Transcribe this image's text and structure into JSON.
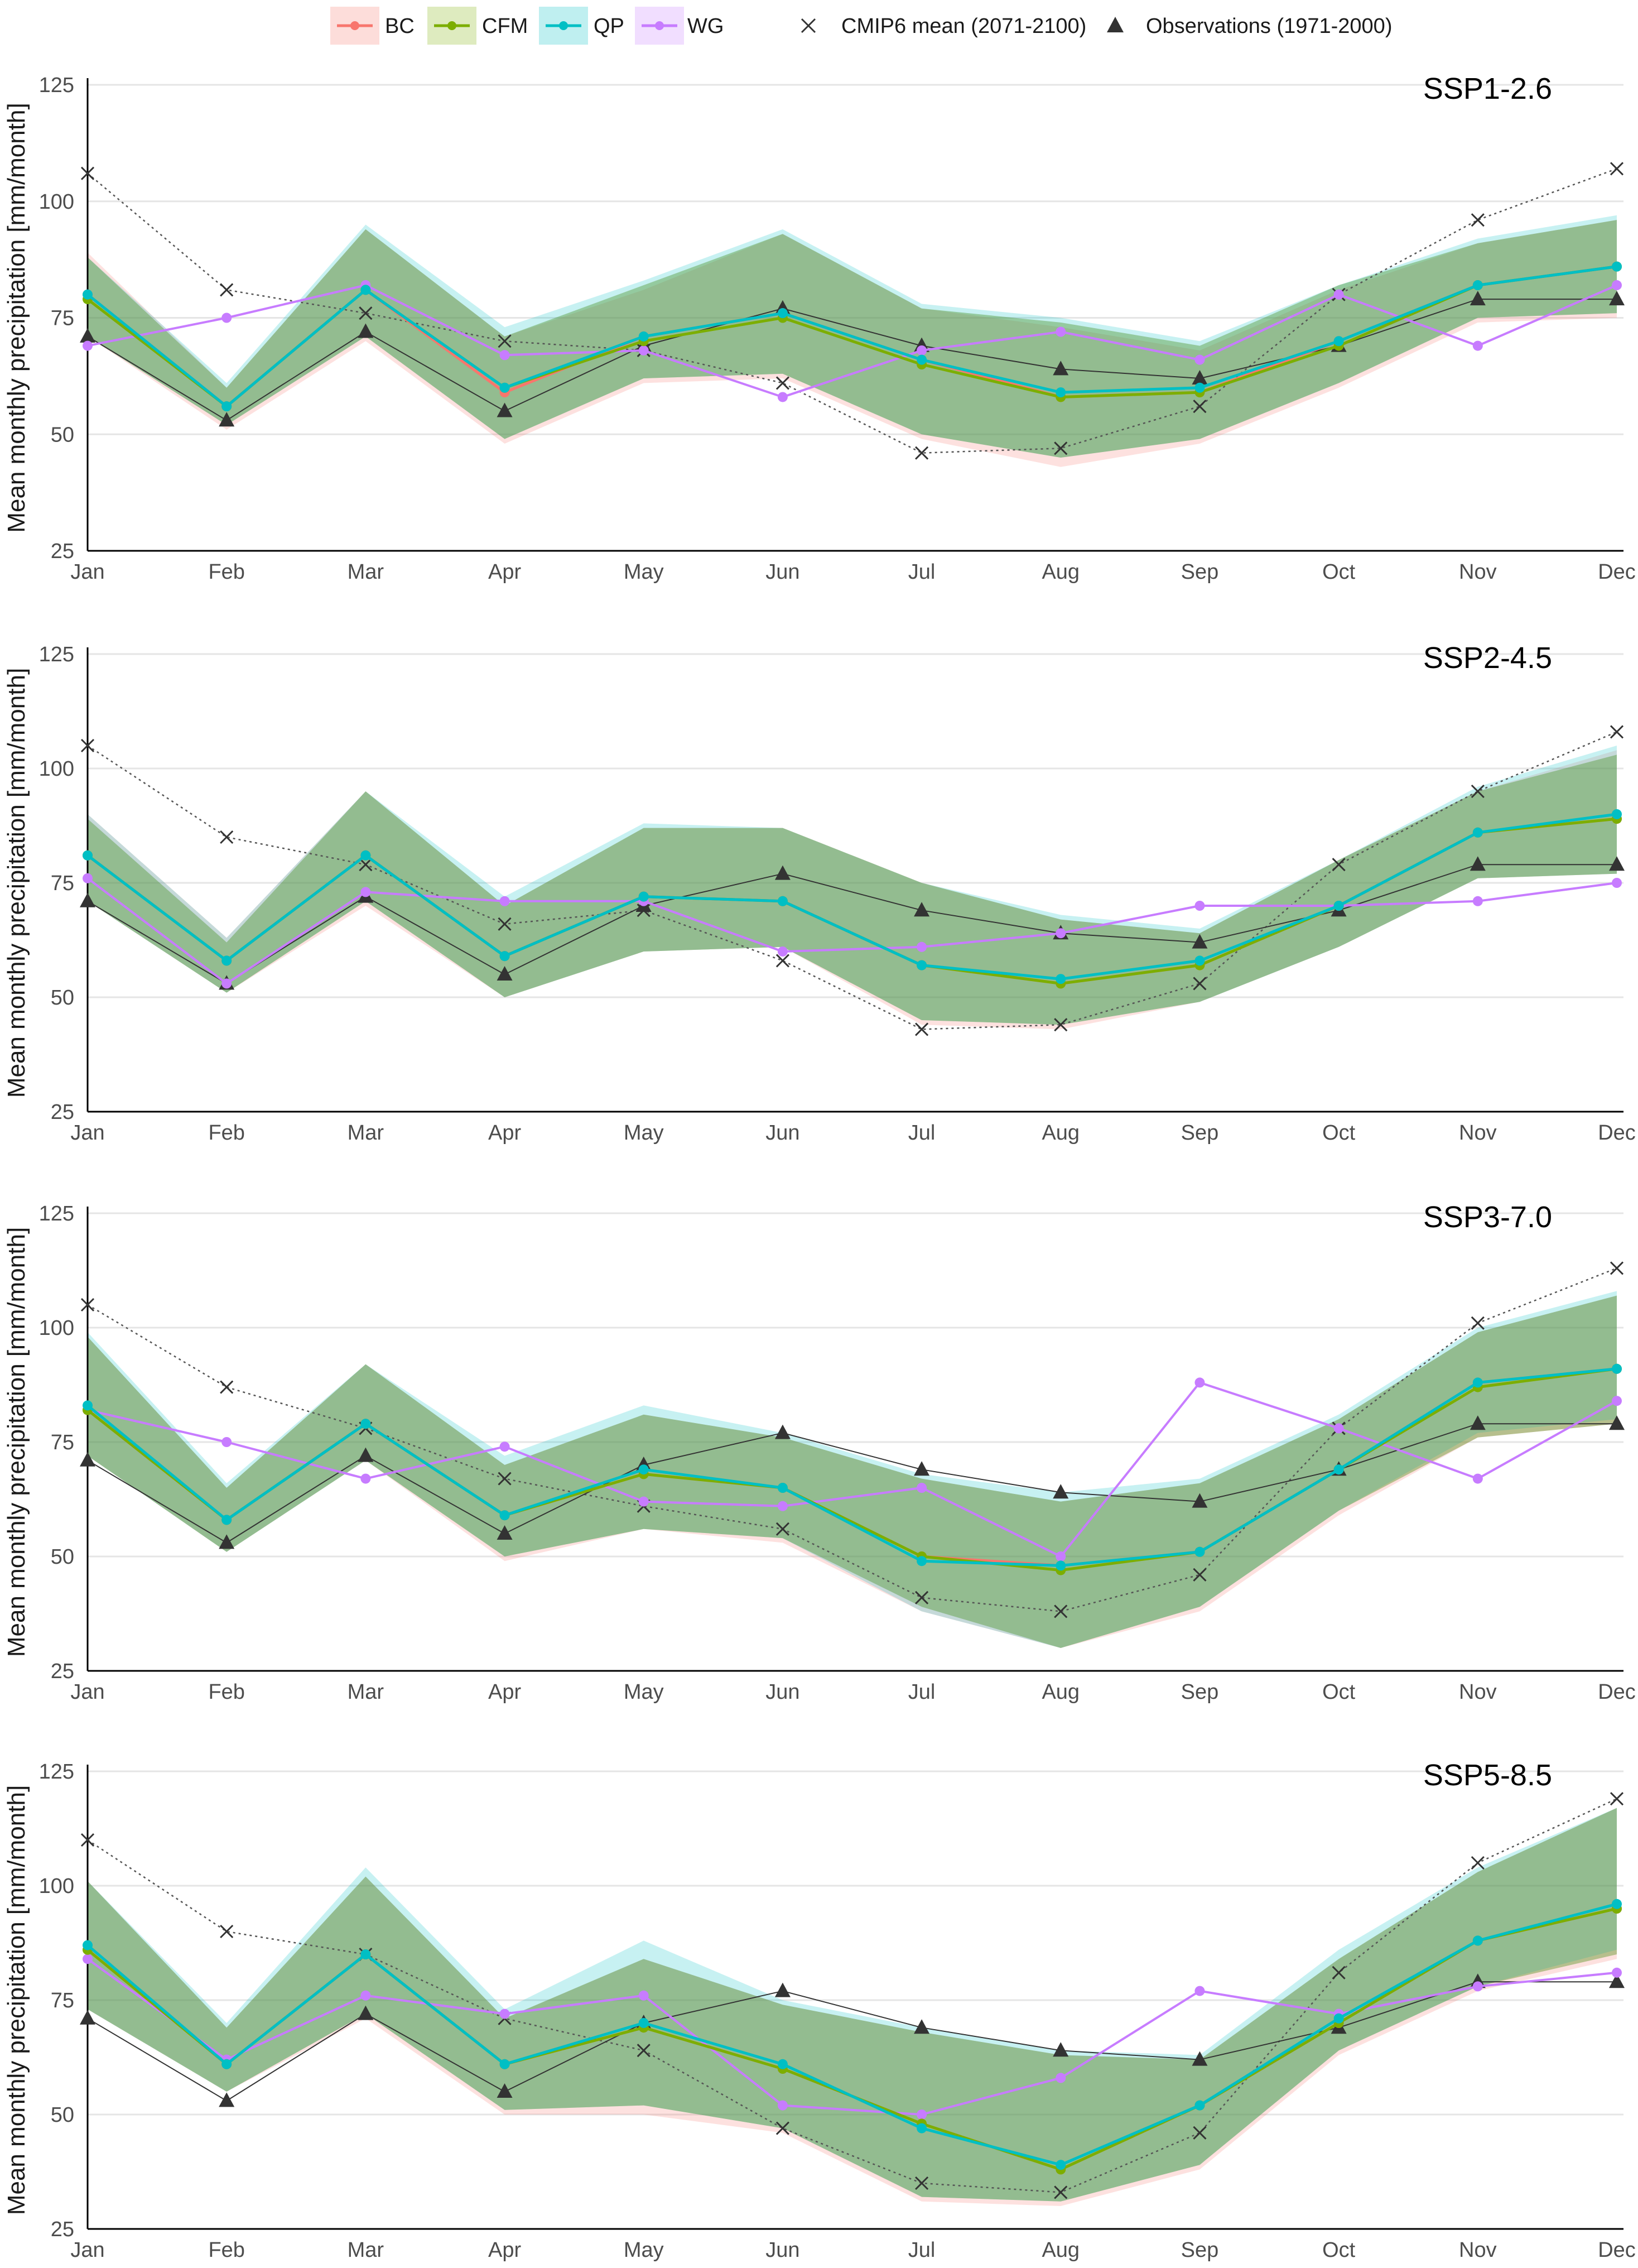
{
  "legend": {
    "items": [
      {
        "key": "BC",
        "label": "BC",
        "color": "#f8766d"
      },
      {
        "key": "CFM",
        "label": "CFM",
        "color": "#7cae00"
      },
      {
        "key": "QP",
        "label": "QP",
        "color": "#00bfc4"
      },
      {
        "key": "WG",
        "label": "WG",
        "color": "#c77cff"
      }
    ],
    "cmip_label": "CMIP6 mean (2071-2100)",
    "obs_label": "Observations (1971-2000)"
  },
  "chart_data": [
    {
      "type": "line",
      "title": "SSP1-2.6",
      "xlabel": "",
      "ylabel": "Mean monthly precipitation [mm/month]",
      "categories": [
        "Jan",
        "Feb",
        "Mar",
        "Apr",
        "May",
        "Jun",
        "Jul",
        "Aug",
        "Sep",
        "Oct",
        "Nov",
        "Dec"
      ],
      "ylim": [
        25,
        125
      ],
      "yticks": [
        "25",
        "50",
        "75",
        "100",
        "125"
      ],
      "grid": true,
      "legend_position": "top",
      "series": [
        {
          "name": "BC",
          "values": [
            80,
            56,
            81,
            59,
            71,
            76,
            66,
            58,
            59,
            70,
            82,
            86
          ],
          "band_lower": [
            71,
            51,
            70,
            48,
            61,
            62,
            49,
            43,
            48,
            60,
            74,
            75
          ],
          "band_upper": [
            89,
            60,
            94,
            71,
            81,
            93,
            77,
            73,
            68,
            81,
            91,
            96
          ]
        },
        {
          "name": "CFM",
          "values": [
            79,
            56,
            81,
            60,
            70,
            75,
            65,
            58,
            59,
            69,
            82,
            86
          ],
          "band_lower": [
            71,
            52,
            71,
            49,
            62,
            63,
            50,
            45,
            49,
            61,
            75,
            76
          ],
          "band_upper": [
            88,
            60,
            94,
            71,
            82,
            93,
            77,
            74,
            69,
            82,
            91,
            96
          ]
        },
        {
          "name": "QP",
          "values": [
            80,
            56,
            81,
            60,
            71,
            76,
            66,
            59,
            60,
            70,
            82,
            86
          ],
          "band_lower": [
            71,
            52,
            71,
            49,
            62,
            63,
            50,
            45,
            49,
            61,
            75,
            76
          ],
          "band_upper": [
            88,
            61,
            95,
            73,
            83,
            94,
            78,
            75,
            70,
            82,
            92,
            97
          ]
        },
        {
          "name": "WG",
          "values": [
            69,
            75,
            82,
            67,
            68,
            58,
            68,
            72,
            66,
            80,
            69,
            82
          ]
        },
        {
          "name": "CMIP6 mean (2071-2100)",
          "values": [
            106,
            81,
            76,
            70,
            68,
            61,
            46,
            47,
            56,
            80,
            96,
            107
          ]
        },
        {
          "name": "Observations (1971-2000)",
          "values": [
            71,
            53,
            72,
            55,
            69,
            77,
            69,
            64,
            62,
            69,
            79,
            79
          ]
        }
      ]
    },
    {
      "type": "line",
      "title": "SSP2-4.5",
      "xlabel": "",
      "ylabel": "Mean monthly precipitation [mm/month]",
      "categories": [
        "Jan",
        "Feb",
        "Mar",
        "Apr",
        "May",
        "Jun",
        "Jul",
        "Aug",
        "Sep",
        "Oct",
        "Nov",
        "Dec"
      ],
      "ylim": [
        25,
        125
      ],
      "yticks": [
        "25",
        "50",
        "75",
        "100",
        "125"
      ],
      "grid": true,
      "series": [
        {
          "name": "BC",
          "values": [
            81,
            58,
            81,
            59,
            72,
            71,
            57,
            53,
            57,
            70,
            86,
            89
          ],
          "band_lower": [
            71,
            51,
            70,
            50,
            60,
            61,
            44,
            43,
            49,
            61,
            76,
            77
          ],
          "band_upper": [
            90,
            63,
            95,
            70,
            87,
            87,
            75,
            67,
            64,
            80,
            95,
            104
          ]
        },
        {
          "name": "CFM",
          "values": [
            81,
            58,
            81,
            59,
            72,
            71,
            57,
            53,
            57,
            70,
            86,
            89
          ],
          "band_lower": [
            71,
            51,
            71,
            50,
            60,
            61,
            45,
            44,
            49,
            61,
            76,
            77
          ],
          "band_upper": [
            89,
            62,
            95,
            70,
            87,
            87,
            75,
            67,
            64,
            80,
            95,
            103
          ]
        },
        {
          "name": "QP",
          "values": [
            81,
            58,
            81,
            59,
            72,
            71,
            57,
            54,
            58,
            70,
            86,
            90
          ],
          "band_lower": [
            71,
            51,
            71,
            50,
            60,
            61,
            45,
            44,
            49,
            61,
            76,
            77
          ],
          "band_upper": [
            90,
            63,
            95,
            72,
            88,
            87,
            75,
            68,
            65,
            80,
            96,
            105
          ]
        },
        {
          "name": "WG",
          "values": [
            76,
            53,
            73,
            71,
            71,
            60,
            61,
            64,
            70,
            70,
            71,
            75
          ]
        },
        {
          "name": "CMIP6 mean (2071-2100)",
          "values": [
            105,
            85,
            79,
            66,
            69,
            58,
            43,
            44,
            53,
            79,
            95,
            108
          ]
        },
        {
          "name": "Observations (1971-2000)",
          "values": [
            71,
            53,
            72,
            55,
            70,
            77,
            69,
            64,
            62,
            69,
            79,
            79
          ]
        }
      ]
    },
    {
      "type": "line",
      "title": "SSP3-7.0",
      "xlabel": "",
      "ylabel": "Mean monthly precipitation [mm/month]",
      "categories": [
        "Jan",
        "Feb",
        "Mar",
        "Apr",
        "May",
        "Jun",
        "Jul",
        "Aug",
        "Sep",
        "Oct",
        "Nov",
        "Dec"
      ],
      "ylim": [
        25,
        125
      ],
      "yticks": [
        "25",
        "50",
        "75",
        "100",
        "125"
      ],
      "grid": true,
      "series": [
        {
          "name": "BC",
          "values": [
            82,
            58,
            79,
            59,
            68,
            65,
            50,
            48,
            51,
            69,
            88,
            91
          ],
          "band_lower": [
            72,
            51,
            71,
            49,
            56,
            53,
            38,
            30,
            38,
            59,
            76,
            79
          ],
          "band_upper": [
            98,
            65,
            92,
            70,
            81,
            76,
            67,
            62,
            66,
            80,
            99,
            107
          ]
        },
        {
          "name": "CFM",
          "values": [
            82,
            58,
            79,
            59,
            68,
            65,
            50,
            47,
            51,
            69,
            87,
            91
          ],
          "band_lower": [
            72,
            51,
            71,
            50,
            56,
            54,
            39,
            30,
            39,
            60,
            76,
            79
          ],
          "band_upper": [
            98,
            65,
            92,
            70,
            81,
            76,
            67,
            62,
            66,
            80,
            99,
            107
          ]
        },
        {
          "name": "QP",
          "values": [
            83,
            58,
            79,
            59,
            69,
            65,
            49,
            48,
            51,
            69,
            88,
            91
          ],
          "band_lower": [
            72,
            51,
            71,
            50,
            56,
            54,
            38,
            30,
            39,
            60,
            77,
            80
          ],
          "band_upper": [
            99,
            66,
            92,
            72,
            83,
            77,
            68,
            64,
            67,
            81,
            100,
            108
          ]
        },
        {
          "name": "WG",
          "values": [
            82,
            75,
            67,
            74,
            62,
            61,
            65,
            50,
            88,
            78,
            67,
            84
          ]
        },
        {
          "name": "CMIP6 mean (2071-2100)",
          "values": [
            105,
            87,
            78,
            67,
            61,
            56,
            41,
            38,
            46,
            78,
            101,
            113
          ]
        },
        {
          "name": "Observations (1971-2000)",
          "values": [
            71,
            53,
            72,
            55,
            70,
            77,
            69,
            64,
            62,
            69,
            79,
            79
          ]
        }
      ]
    },
    {
      "type": "line",
      "title": "SSP5-8.5",
      "xlabel": "",
      "ylabel": "Mean monthly precipitation [mm/month]",
      "categories": [
        "Jan",
        "Feb",
        "Mar",
        "Apr",
        "May",
        "Jun",
        "Jul",
        "Aug",
        "Sep",
        "Oct",
        "Nov",
        "Dec"
      ],
      "ylim": [
        25,
        125
      ],
      "yticks": [
        "25",
        "50",
        "75",
        "100",
        "125"
      ],
      "grid": true,
      "series": [
        {
          "name": "BC",
          "values": [
            86,
            61,
            85,
            61,
            69,
            60,
            48,
            38,
            52,
            70,
            88,
            95
          ],
          "band_lower": [
            73,
            55,
            71,
            50,
            50,
            46,
            31,
            30,
            38,
            63,
            77,
            84
          ],
          "band_upper": [
            101,
            69,
            102,
            71,
            84,
            74,
            68,
            63,
            62,
            84,
            103,
            117
          ]
        },
        {
          "name": "CFM",
          "values": [
            86,
            61,
            85,
            61,
            69,
            60,
            48,
            38,
            52,
            70,
            88,
            95
          ],
          "band_lower": [
            73,
            55,
            72,
            51,
            52,
            47,
            32,
            31,
            39,
            64,
            78,
            85
          ],
          "band_upper": [
            101,
            69,
            102,
            71,
            84,
            74,
            68,
            63,
            62,
            84,
            103,
            117
          ]
        },
        {
          "name": "QP",
          "values": [
            87,
            61,
            85,
            61,
            70,
            61,
            47,
            39,
            52,
            71,
            88,
            96
          ],
          "band_lower": [
            73,
            55,
            72,
            51,
            52,
            47,
            32,
            31,
            39,
            64,
            78,
            86
          ],
          "band_upper": [
            101,
            70,
            104,
            73,
            88,
            75,
            69,
            64,
            63,
            86,
            104,
            117
          ]
        },
        {
          "name": "WG",
          "values": [
            84,
            62,
            76,
            72,
            76,
            52,
            50,
            58,
            77,
            72,
            78,
            81
          ]
        },
        {
          "name": "CMIP6 mean (2071-2100)",
          "values": [
            110,
            90,
            85,
            71,
            64,
            47,
            35,
            33,
            46,
            81,
            105,
            119
          ]
        },
        {
          "name": "Observations (1971-2000)",
          "values": [
            71,
            53,
            72,
            55,
            70,
            77,
            69,
            64,
            62,
            69,
            79,
            79
          ]
        }
      ]
    }
  ]
}
